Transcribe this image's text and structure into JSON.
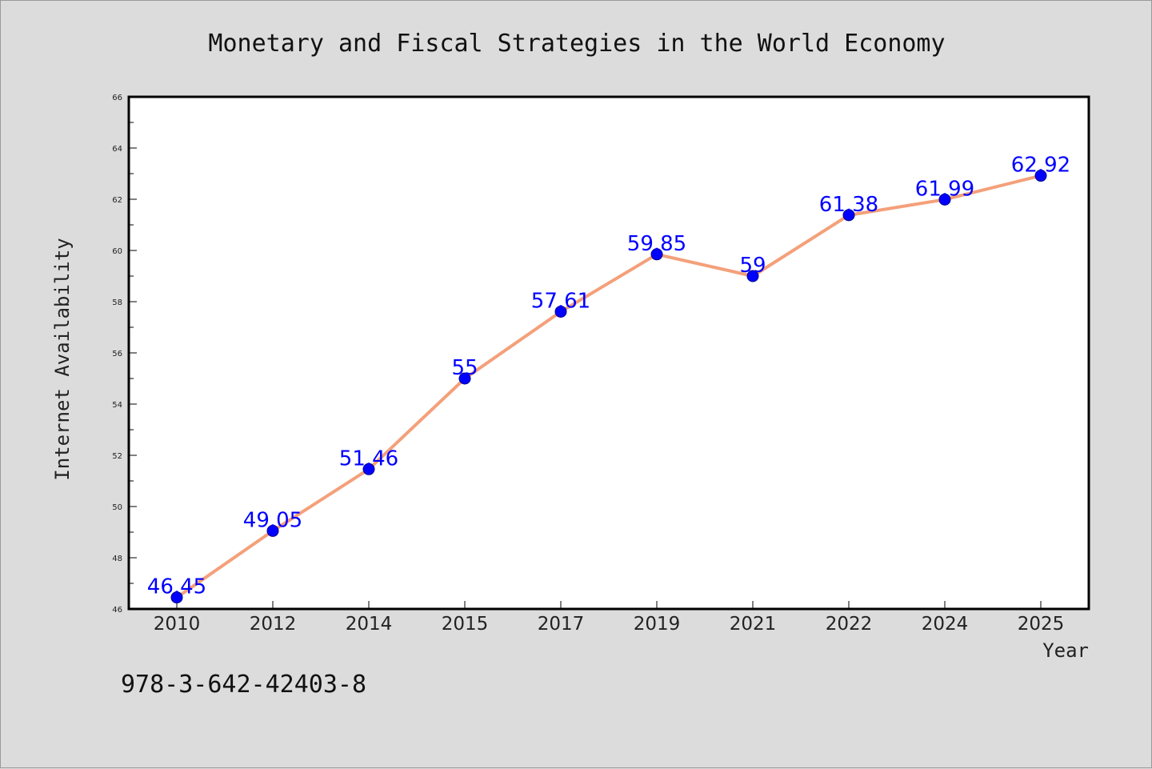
{
  "footnote": "978-3-642-42403-8",
  "colors": {
    "background": "#dcdcdc",
    "plot_background": "#ffffff",
    "line": "#f4a07a",
    "marker": "#0000ff",
    "data_label": "#0000ff"
  },
  "chart_data": {
    "type": "line",
    "title": "Monetary and Fiscal Strategies in the World Economy",
    "xlabel": "Year",
    "ylabel": "Internet Availability",
    "categories": [
      "2010",
      "2012",
      "2014",
      "2015",
      "2017",
      "2019",
      "2021",
      "2022",
      "2024",
      "2025"
    ],
    "series": [
      {
        "values": [
          46.45,
          49.05,
          51.46,
          55,
          57.61,
          59.85,
          59,
          61.38,
          61.99,
          62.92
        ],
        "labels": [
          "46.45",
          "49.05",
          "51.46",
          "55",
          "57.61",
          "59.85",
          "59",
          "61.38",
          "61.99",
          "62.92"
        ]
      }
    ],
    "ylim": [
      46,
      66
    ],
    "yticks": [
      46,
      48,
      50,
      52,
      54,
      56,
      58,
      60,
      62,
      64,
      66
    ],
    "grid": false,
    "legend": "none"
  }
}
